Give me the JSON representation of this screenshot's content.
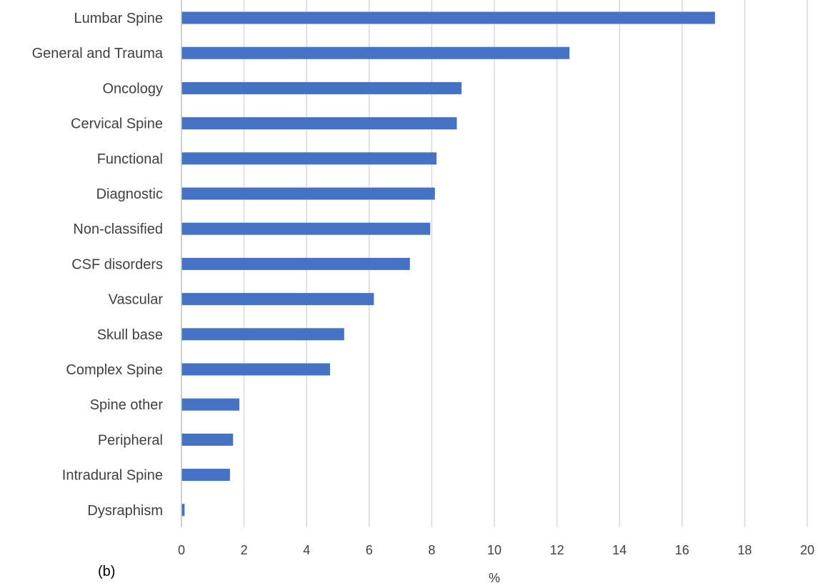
{
  "chart_data": {
    "type": "bar",
    "orientation": "horizontal",
    "categories": [
      "Lumbar Spine",
      "General and Trauma",
      "Oncology",
      "Cervical Spine",
      "Functional",
      "Diagnostic",
      "Non-classified",
      "CSF disorders",
      "Vascular",
      "Skull base",
      "Complex Spine",
      "Spine other",
      "Peripheral",
      "Intradural Spine",
      "Dysraphism"
    ],
    "values": [
      17.05,
      12.4,
      8.95,
      8.8,
      8.15,
      8.1,
      7.95,
      7.3,
      6.15,
      5.2,
      4.75,
      1.85,
      1.65,
      1.55,
      0.1
    ],
    "xlabel": "%",
    "xlim": [
      0,
      20
    ],
    "xticks": [
      "0",
      "2",
      "4",
      "6",
      "8",
      "10",
      "12",
      "14",
      "16",
      "18",
      "20"
    ],
    "grid": "vertical",
    "legend": "none",
    "bar_color": "#4472c4",
    "panel_label": "(b)"
  }
}
